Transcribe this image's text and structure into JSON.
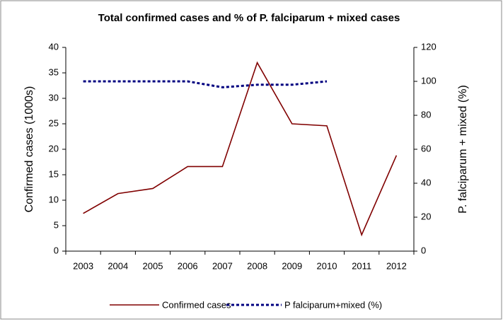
{
  "chart_data": {
    "type": "line",
    "title": "Total confirmed cases and % of P. falciparum + mixed cases",
    "y_label": "Confirmed cases  (1000s)",
    "y2_label": "P. falciparum + mixed (%)",
    "categories": [
      "2003",
      "2004",
      "2005",
      "2006",
      "2007",
      "2008",
      "2009",
      "2010",
      "2011",
      "2012"
    ],
    "series": [
      {
        "name": "Confirmed cases",
        "color": "#800000",
        "values": [
          7.4,
          11.3,
          12.3,
          16.6,
          16.6,
          37,
          25,
          24.6,
          3.2,
          18.8
        ]
      },
      {
        "name": "P falciparum+mixed (%)",
        "color": "#000080",
        "axis": "y2",
        "dashed": true,
        "values": [
          100,
          100,
          100,
          100,
          96.5,
          98,
          98,
          100,
          null,
          null
        ]
      }
    ],
    "ylim": [
      0,
      40
    ],
    "yticks": [
      0,
      5,
      10,
      15,
      20,
      25,
      30,
      35,
      40
    ],
    "y2lim": [
      0,
      120
    ],
    "y2ticks": [
      0,
      20,
      40,
      60,
      80,
      100,
      120
    ],
    "grid": false,
    "legend": "bottom"
  }
}
